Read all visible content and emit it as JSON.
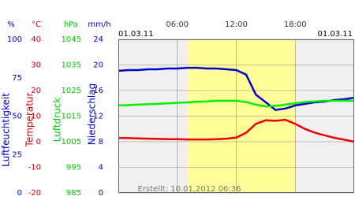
{
  "chart_data": {
    "type": "line",
    "date_left": "01.03.11",
    "date_right": "01.03.11",
    "footer": "Erstellt: 10.01.2012 06:36",
    "xlim": [
      0,
      24
    ],
    "xticks": [
      {
        "value": 6,
        "label": "06:00"
      },
      {
        "value": 12,
        "label": "12:00"
      },
      {
        "value": 18,
        "label": "18:00"
      }
    ],
    "daylight": [
      7.1,
      18.1
    ],
    "daylight_color": "#ffff99",
    "grid": true,
    "axes": [
      {
        "unit": "%",
        "title": "Luftfeuchtigkeit",
        "color": "#0000cc",
        "lim": [
          0,
          100
        ],
        "ticks": [
          0,
          25,
          50,
          75,
          100
        ]
      },
      {
        "unit": "°C",
        "title": "Temperatur",
        "color": "#cc0000",
        "lim": [
          -20,
          40
        ],
        "ticks": [
          -20,
          -10,
          0,
          10,
          20,
          30,
          40
        ]
      },
      {
        "unit": "hPa",
        "title": "Luftdruck",
        "color": "#00cc00",
        "lim": [
          985,
          1045
        ],
        "ticks": [
          985,
          995,
          1005,
          1015,
          1025,
          1035,
          1045
        ]
      },
      {
        "unit": "mm/h",
        "title": "Niederschlag",
        "color": "#0000cc",
        "lim": [
          0,
          24
        ],
        "ticks": [
          0,
          4,
          8,
          12,
          16,
          20,
          24
        ]
      }
    ],
    "x": [
      0,
      1,
      2,
      3,
      4,
      5,
      6,
      7,
      8,
      9,
      10,
      11,
      12,
      13,
      14,
      15,
      16,
      17,
      18,
      19,
      20,
      21,
      22,
      23,
      24
    ],
    "series": [
      {
        "axis": 0,
        "color": "#0000cc",
        "values": [
          79.5,
          80,
          80,
          80.5,
          80.5,
          81,
          81,
          81.5,
          81.5,
          81,
          81,
          80.5,
          80,
          77,
          64,
          59,
          54,
          55,
          57,
          58,
          59,
          59.5,
          60.5,
          61,
          62
        ]
      },
      {
        "axis": 2,
        "color": "#00ee00",
        "values": [
          1019.2,
          1019.3,
          1019.5,
          1019.6,
          1019.8,
          1020,
          1020.2,
          1020.4,
          1020.6,
          1020.8,
          1021,
          1021,
          1021,
          1020.5,
          1019.5,
          1018.8,
          1019,
          1019.5,
          1020,
          1020.5,
          1020.8,
          1021,
          1021,
          1021,
          1021
        ]
      },
      {
        "axis": 1,
        "color": "#ee0000",
        "values": [
          1.5,
          1.4,
          1.3,
          1.2,
          1.1,
          1.0,
          1.0,
          0.9,
          0.9,
          0.9,
          1.0,
          1.2,
          1.6,
          3.5,
          7,
          8.4,
          8.2,
          8.6,
          7,
          5,
          3.5,
          2.5,
          1.5,
          0.8,
          0
        ]
      }
    ]
  }
}
